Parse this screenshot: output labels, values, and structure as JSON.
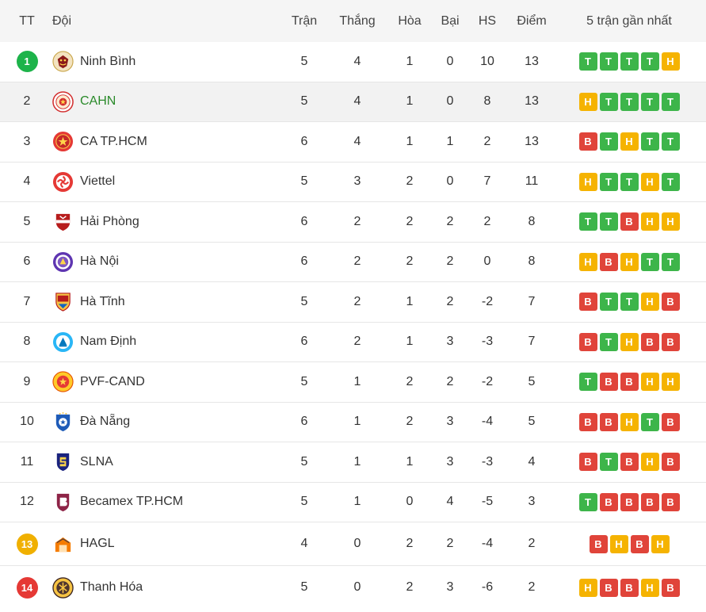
{
  "headers": {
    "tt": "TT",
    "team": "Đội",
    "tran": "Trận",
    "thang": "Thắng",
    "hoa": "Hòa",
    "bai": "Bại",
    "hs": "HS",
    "diem": "Điểm",
    "form": "5 trận gần nhất"
  },
  "colors": {
    "win": "#3db54a",
    "draw": "#f5b301",
    "loss": "#e0443a",
    "rank_top": "#1db34a",
    "rank_mid": "#f0b000",
    "rank_bottom": "#e53935",
    "team_highlight": "#2a8a2a"
  },
  "rows": [
    {
      "rank": "1",
      "badge": "rank-top",
      "team": "Ninh Bình",
      "logo": "ninh-binh-logo",
      "tran": "5",
      "thang": "4",
      "hoa": "1",
      "bai": "0",
      "hs": "10",
      "diem": "13",
      "form": [
        "T",
        "T",
        "T",
        "T",
        "H"
      ]
    },
    {
      "rank": "2",
      "team": "CAHN",
      "logo": "cahn-logo",
      "highlight": true,
      "tran": "5",
      "thang": "4",
      "hoa": "1",
      "bai": "0",
      "hs": "8",
      "diem": "13",
      "form": [
        "H",
        "T",
        "T",
        "T",
        "T"
      ]
    },
    {
      "rank": "3",
      "team": "CA TP.HCM",
      "logo": "ca-tphcm-logo",
      "tran": "6",
      "thang": "4",
      "hoa": "1",
      "bai": "1",
      "hs": "2",
      "diem": "13",
      "form": [
        "B",
        "T",
        "H",
        "T",
        "T"
      ]
    },
    {
      "rank": "4",
      "team": "Viettel",
      "logo": "viettel-logo",
      "tran": "5",
      "thang": "3",
      "hoa": "2",
      "bai": "0",
      "hs": "7",
      "diem": "11",
      "form": [
        "H",
        "T",
        "T",
        "H",
        "T"
      ]
    },
    {
      "rank": "5",
      "team": "Hải Phòng",
      "logo": "hai-phong-logo",
      "tran": "6",
      "thang": "2",
      "hoa": "2",
      "bai": "2",
      "hs": "2",
      "diem": "8",
      "form": [
        "T",
        "T",
        "B",
        "H",
        "H"
      ]
    },
    {
      "rank": "6",
      "team": "Hà Nội",
      "logo": "ha-noi-logo",
      "tran": "6",
      "thang": "2",
      "hoa": "2",
      "bai": "2",
      "hs": "0",
      "diem": "8",
      "form": [
        "H",
        "B",
        "H",
        "T",
        "T"
      ]
    },
    {
      "rank": "7",
      "team": "Hà Tĩnh",
      "logo": "ha-tinh-logo",
      "tran": "5",
      "thang": "2",
      "hoa": "1",
      "bai": "2",
      "hs": "-2",
      "diem": "7",
      "form": [
        "B",
        "T",
        "T",
        "H",
        "B"
      ]
    },
    {
      "rank": "8",
      "team": "Nam Định",
      "logo": "nam-dinh-logo",
      "tran": "6",
      "thang": "2",
      "hoa": "1",
      "bai": "3",
      "hs": "-3",
      "diem": "7",
      "form": [
        "B",
        "T",
        "H",
        "B",
        "B"
      ]
    },
    {
      "rank": "9",
      "team": "PVF-CAND",
      "logo": "pvf-cand-logo",
      "tran": "5",
      "thang": "1",
      "hoa": "2",
      "bai": "2",
      "hs": "-2",
      "diem": "5",
      "form": [
        "T",
        "B",
        "B",
        "H",
        "H"
      ]
    },
    {
      "rank": "10",
      "team": "Đà Nẵng",
      "logo": "da-nang-logo",
      "tran": "6",
      "thang": "1",
      "hoa": "2",
      "bai": "3",
      "hs": "-4",
      "diem": "5",
      "form": [
        "B",
        "B",
        "H",
        "T",
        "B"
      ]
    },
    {
      "rank": "11",
      "team": "SLNA",
      "logo": "slna-logo",
      "tran": "5",
      "thang": "1",
      "hoa": "1",
      "bai": "3",
      "hs": "-3",
      "diem": "4",
      "form": [
        "B",
        "T",
        "B",
        "H",
        "B"
      ]
    },
    {
      "rank": "12",
      "team": "Becamex TP.HCM",
      "logo": "becamex-logo",
      "tran": "5",
      "thang": "1",
      "hoa": "0",
      "bai": "4",
      "hs": "-5",
      "diem": "3",
      "form": [
        "T",
        "B",
        "B",
        "B",
        "B"
      ]
    },
    {
      "rank": "13",
      "badge": "rank-mid",
      "team": "HAGL",
      "logo": "hagl-logo",
      "tran": "4",
      "thang": "0",
      "hoa": "2",
      "bai": "2",
      "hs": "-4",
      "diem": "2",
      "form": [
        "B",
        "H",
        "B",
        "H"
      ]
    },
    {
      "rank": "14",
      "badge": "rank-bottom",
      "team": "Thanh Hóa",
      "logo": "thanh-hoa-logo",
      "tran": "5",
      "thang": "0",
      "hoa": "2",
      "bai": "3",
      "hs": "-6",
      "diem": "2",
      "form": [
        "H",
        "B",
        "B",
        "H",
        "B"
      ]
    }
  ]
}
